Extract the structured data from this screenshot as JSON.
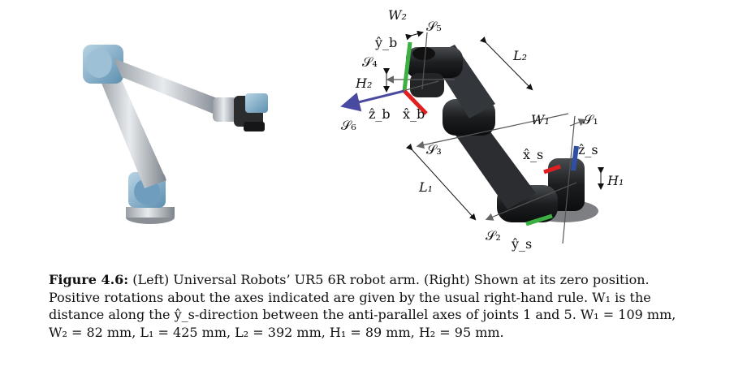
{
  "figure": {
    "left_image": "UR5 6R robot arm photograph",
    "right_image": "UR5 arm at zero position with joint axes",
    "labels": {
      "W2": "W₂",
      "S5": "𝒮₅",
      "yb": "ŷ_b",
      "S4": "𝒮₄",
      "H2": "H₂",
      "zb": "ẑ_b",
      "xb": "x̂_b",
      "S6": "𝒮₆",
      "L2": "L₂",
      "W1": "W₁",
      "S1": "𝒮₁",
      "xs": "x̂_s",
      "zs": "ẑ_s",
      "S3": "𝒮₃",
      "H1": "H₁",
      "L1": "L₁",
      "S2": "𝒮₂",
      "ys": "ŷ_s"
    }
  },
  "caption": {
    "label": "Figure 4.6:",
    "text": "(Left) Universal Robots’ UR5 6R robot arm. (Right) Shown at its zero position. Positive rotations about the axes indicated are given by the usual right-hand rule. W₁ is the distance along the ŷ_s-direction between the anti-parallel axes of joints 1 and 5. W₁ = 109 mm, W₂ = 82 mm, L₁ = 425 mm, L₂ = 392 mm, H₁ = 89 mm, H₂ = 95 mm."
  }
}
